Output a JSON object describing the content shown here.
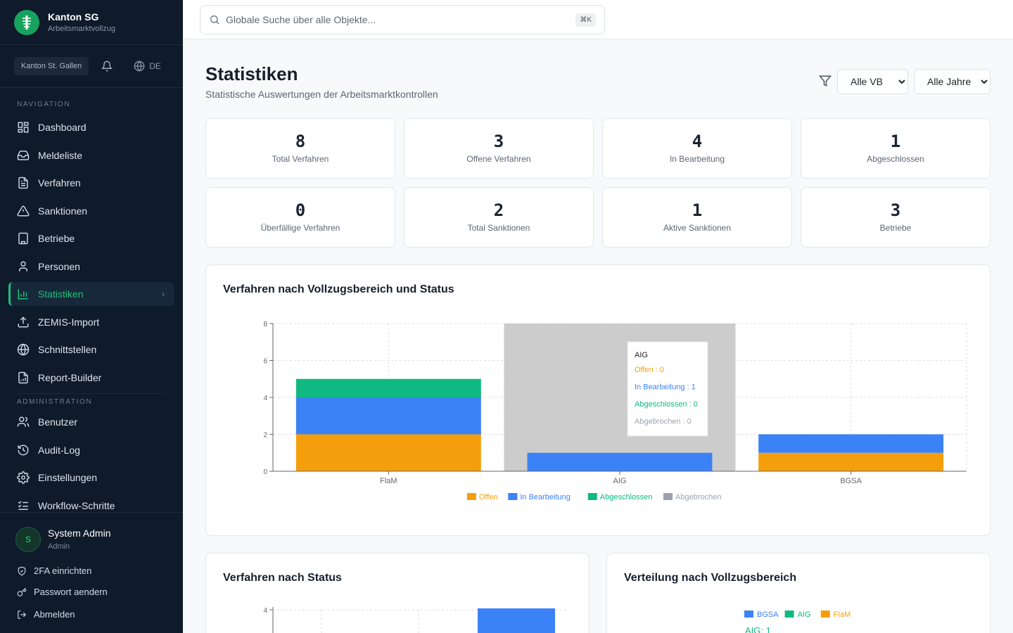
{
  "brand": {
    "title": "Kanton SG",
    "subtitle": "Arbeitsmarktvollzug"
  },
  "toolbar": {
    "canton": "Kanton St. Gallen",
    "language": "DE"
  },
  "nav": {
    "section_nav": "NAVIGATION",
    "section_admin": "ADMINISTRATION",
    "items": [
      {
        "label": "Dashboard",
        "icon": "dashboard-icon"
      },
      {
        "label": "Meldeliste",
        "icon": "inbox-icon"
      },
      {
        "label": "Verfahren",
        "icon": "file-icon"
      },
      {
        "label": "Sanktionen",
        "icon": "warning-icon"
      },
      {
        "label": "Betriebe",
        "icon": "building-icon"
      },
      {
        "label": "Personen",
        "icon": "user-icon"
      },
      {
        "label": "Statistiken",
        "icon": "bar-chart-icon",
        "active": true
      },
      {
        "label": "ZEMIS-Import",
        "icon": "upload-icon"
      },
      {
        "label": "Schnittstellen",
        "icon": "globe-icon"
      },
      {
        "label": "Report-Builder",
        "icon": "report-icon"
      }
    ],
    "admin_items": [
      {
        "label": "Benutzer",
        "icon": "users-icon"
      },
      {
        "label": "Audit-Log",
        "icon": "history-icon"
      },
      {
        "label": "Einstellungen",
        "icon": "gear-icon"
      },
      {
        "label": "Workflow-Schritte",
        "icon": "list-check-icon"
      }
    ]
  },
  "user": {
    "initial": "S",
    "name": "System Admin",
    "role": "Admin",
    "links": [
      "2FA einrichten",
      "Passwort aendern",
      "Abmelden"
    ]
  },
  "search": {
    "placeholder": "Globale Suche über alle Objekte...",
    "shortcut": "⌘K"
  },
  "page": {
    "title": "Statistiken",
    "subtitle": "Statistische Auswertungen der Arbeitsmarktkontrollen"
  },
  "filters": {
    "vb": {
      "selected": "Alle VB",
      "options": [
        "Alle VB"
      ]
    },
    "year": {
      "selected": "Alle Jahre",
      "options": [
        "Alle Jahre"
      ]
    }
  },
  "kpis": [
    {
      "value": "8",
      "label": "Total Verfahren"
    },
    {
      "value": "3",
      "label": "Offene Verfahren"
    },
    {
      "value": "4",
      "label": "In Bearbeitung"
    },
    {
      "value": "1",
      "label": "Abgeschlossen"
    },
    {
      "value": "0",
      "label": "Überfällige Verfahren"
    },
    {
      "value": "2",
      "label": "Total Sanktionen"
    },
    {
      "value": "1",
      "label": "Aktive Sanktionen"
    },
    {
      "value": "3",
      "label": "Betriebe"
    }
  ],
  "colors": {
    "offen": "#f59e0b",
    "in_bearbeitung": "#3b82f6",
    "abgeschlossen": "#10b981",
    "abgebrochen": "#9ca3af",
    "accent": "#1ec07a"
  },
  "chart_data": [
    {
      "type": "bar",
      "stacked": true,
      "title": "Verfahren nach Vollzugsbereich und Status",
      "categories": [
        "FlaM",
        "AIG",
        "BGSA"
      ],
      "series": [
        {
          "name": "Offen",
          "values": [
            2,
            0,
            1
          ]
        },
        {
          "name": "In Bearbeitung",
          "values": [
            2,
            1,
            1
          ]
        },
        {
          "name": "Abgeschlossen",
          "values": [
            1,
            0,
            0
          ]
        },
        {
          "name": "Abgebrochen",
          "values": [
            0,
            0,
            0
          ]
        }
      ],
      "ylim": [
        0,
        8
      ],
      "yticks": [
        0,
        2,
        4,
        6,
        8
      ],
      "grid": true,
      "legend": "bottom",
      "hovered_category": "AIG",
      "tooltip": {
        "title": "AIG",
        "lines": [
          "Offen : 0",
          "In Bearbeitung : 1",
          "Abgeschlossen : 0",
          "Abgebrochen : 0"
        ]
      }
    },
    {
      "type": "bar",
      "title": "Verfahren nach Status",
      "yticks_visible": [
        4
      ]
    },
    {
      "type": "pie",
      "title": "Verteilung nach Vollzugsbereich",
      "legend_entries": [
        "BGSA",
        "AIG",
        "FlaM"
      ],
      "visible_label": "AIG: 1"
    }
  ]
}
